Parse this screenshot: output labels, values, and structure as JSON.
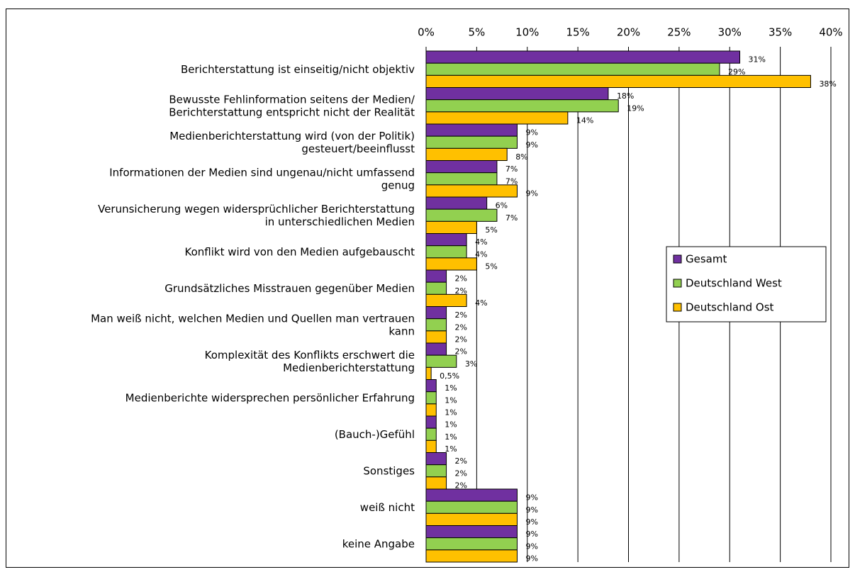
{
  "chart_data": {
    "type": "hbar",
    "categories": [
      "Berichterstattung ist einseitig/nicht objektiv",
      "Bewusste Fehlinformation seitens der Medien/\nBerichterstattung entspricht nicht der Realität",
      "Medienberichterstattung wird (von der Politik)\ngesteuert/beeinflusst",
      "Informationen der Medien sind ungenau/nicht umfassend\ngenug",
      "Verunsicherung wegen widersprüchlicher Berichterstattung\nin unterschiedlichen Medien",
      "Konflikt wird von den Medien aufgebauscht",
      "Grundsätzliches Misstrauen gegenüber Medien",
      "Man weiß nicht, welchen Medien und Quellen man vertrauen\nkann",
      "Komplexität des Konflikts erschwert die\nMedienberichterstattung",
      "Medienberichte widersprechen persönlicher Erfahrung",
      "(Bauch-)Gefühl",
      "Sonstiges",
      "weiß nicht",
      "keine Angabe"
    ],
    "series": [
      {
        "name": "Gesamt",
        "color": "#7030a0",
        "values": [
          31,
          18,
          9,
          7,
          6,
          4,
          2,
          2,
          2,
          1,
          1,
          2,
          9,
          9
        ],
        "value_labels": [
          "31%",
          "18%",
          "9%",
          "7%",
          "6%",
          "4%",
          "2%",
          "2%",
          "2%",
          "1%",
          "1%",
          "2%",
          "9%",
          "9%"
        ]
      },
      {
        "name": "Deutschland West",
        "color": "#92d050",
        "values": [
          29,
          19,
          9,
          7,
          7,
          4,
          2,
          2,
          3,
          1,
          1,
          2,
          9,
          9
        ],
        "value_labels": [
          "29%",
          "19%",
          "9%",
          "7%",
          "7%",
          "4%",
          "2%",
          "2%",
          "3%",
          "1%",
          "1%",
          "2%",
          "9%",
          "9%"
        ]
      },
      {
        "name": "Deutschland Ost",
        "color": "#ffc000",
        "values": [
          38,
          14,
          8,
          9,
          5,
          5,
          4,
          2,
          0.5,
          1,
          1,
          2,
          9,
          9
        ],
        "value_labels": [
          "38%",
          "14%",
          "8%",
          "9%",
          "5%",
          "5%",
          "4%",
          "2%",
          "0,5%",
          "1%",
          "1%",
          "2%",
          "9%",
          "9%"
        ]
      }
    ],
    "xlim": [
      0,
      40
    ],
    "xticks": [
      {
        "value": 0,
        "label": "0%"
      },
      {
        "value": 5,
        "label": "5%"
      },
      {
        "value": 10,
        "label": "10%"
      },
      {
        "value": 15,
        "label": "15%"
      },
      {
        "value": 20,
        "label": "20%"
      },
      {
        "value": 25,
        "label": "25%"
      },
      {
        "value": 30,
        "label": "30%"
      },
      {
        "value": 35,
        "label": "35%"
      },
      {
        "value": 40,
        "label": "40%"
      }
    ],
    "grid": true,
    "legend": "right"
  }
}
